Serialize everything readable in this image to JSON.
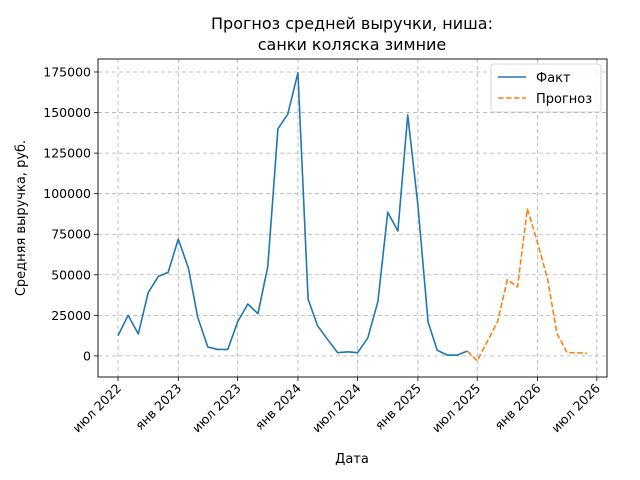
{
  "chart_data": {
    "type": "line",
    "title": "Прогноз средней выручки, ниша:",
    "subtitle": "санки коляска зимние",
    "xlabel": "Дата",
    "ylabel": "Средняя выручка, руб.",
    "x_ticks": [
      "2022-07-01",
      "2023-01-01",
      "2023-07-01",
      "2024-01-01",
      "2024-07-01",
      "2025-01-01",
      "2025-07-01",
      "2026-01-01",
      "2026-07-01"
    ],
    "x_tick_labels": [
      "июл 2022",
      "янв 2023",
      "июл 2023",
      "янв 2024",
      "июл 2024",
      "янв 2025",
      "июл 2025",
      "янв 2026",
      "июл 2026"
    ],
    "xlim": [
      "2022-05-01",
      "2026-08-01"
    ],
    "y_ticks": [
      0,
      25000,
      50000,
      75000,
      100000,
      125000,
      150000,
      175000
    ],
    "y_tick_labels": [
      "0",
      "25000",
      "50000",
      "75000",
      "100000",
      "125000",
      "150000",
      "175000"
    ],
    "ylim": [
      -13000,
      183000
    ],
    "grid": true,
    "legend_position": "top-right",
    "series": [
      {
        "name": "Факт",
        "color": "#1f77b4",
        "style": "solid",
        "points": [
          {
            "x": "2022-07-01",
            "y": 12500
          },
          {
            "x": "2022-08-01",
            "y": 25000
          },
          {
            "x": "2022-09-01",
            "y": 13500
          },
          {
            "x": "2022-10-01",
            "y": 39000
          },
          {
            "x": "2022-11-01",
            "y": 49000
          },
          {
            "x": "2022-12-01",
            "y": 51500
          },
          {
            "x": "2023-01-01",
            "y": 72000
          },
          {
            "x": "2023-02-01",
            "y": 54000
          },
          {
            "x": "2023-03-01",
            "y": 24000
          },
          {
            "x": "2023-04-01",
            "y": 5500
          },
          {
            "x": "2023-05-01",
            "y": 4000
          },
          {
            "x": "2023-06-01",
            "y": 4000
          },
          {
            "x": "2023-07-01",
            "y": 21000
          },
          {
            "x": "2023-08-01",
            "y": 32000
          },
          {
            "x": "2023-09-01",
            "y": 26000
          },
          {
            "x": "2023-10-01",
            "y": 55000
          },
          {
            "x": "2023-11-01",
            "y": 140000
          },
          {
            "x": "2023-12-01",
            "y": 149000
          },
          {
            "x": "2024-01-01",
            "y": 174500
          },
          {
            "x": "2024-02-01",
            "y": 35000
          },
          {
            "x": "2024-03-01",
            "y": 18500
          },
          {
            "x": "2024-04-01",
            "y": 10000
          },
          {
            "x": "2024-05-01",
            "y": 2000
          },
          {
            "x": "2024-06-01",
            "y": 2500
          },
          {
            "x": "2024-07-01",
            "y": 2000
          },
          {
            "x": "2024-08-01",
            "y": 11000
          },
          {
            "x": "2024-09-01",
            "y": 33500
          },
          {
            "x": "2024-10-01",
            "y": 88500
          },
          {
            "x": "2024-11-01",
            "y": 77000
          },
          {
            "x": "2024-12-01",
            "y": 148500
          },
          {
            "x": "2025-01-01",
            "y": 93000
          },
          {
            "x": "2025-02-01",
            "y": 21000
          },
          {
            "x": "2025-03-01",
            "y": 3500
          },
          {
            "x": "2025-04-01",
            "y": 500
          },
          {
            "x": "2025-05-01",
            "y": 500
          },
          {
            "x": "2025-06-01",
            "y": 3000
          }
        ]
      },
      {
        "name": "Прогноз",
        "color": "#ff7f0e",
        "style": "dashed",
        "points": [
          {
            "x": "2025-06-01",
            "y": 3000
          },
          {
            "x": "2025-07-01",
            "y": -3000
          },
          {
            "x": "2025-08-01",
            "y": 9000
          },
          {
            "x": "2025-09-01",
            "y": 21000
          },
          {
            "x": "2025-10-01",
            "y": 47000
          },
          {
            "x": "2025-11-01",
            "y": 42500
          },
          {
            "x": "2025-12-01",
            "y": 90500
          },
          {
            "x": "2026-01-01",
            "y": 70000
          },
          {
            "x": "2026-02-01",
            "y": 47000
          },
          {
            "x": "2026-03-01",
            "y": 14000
          },
          {
            "x": "2026-04-01",
            "y": 2000
          },
          {
            "x": "2026-05-01",
            "y": 2000
          },
          {
            "x": "2026-06-01",
            "y": 1500
          }
        ]
      }
    ]
  }
}
